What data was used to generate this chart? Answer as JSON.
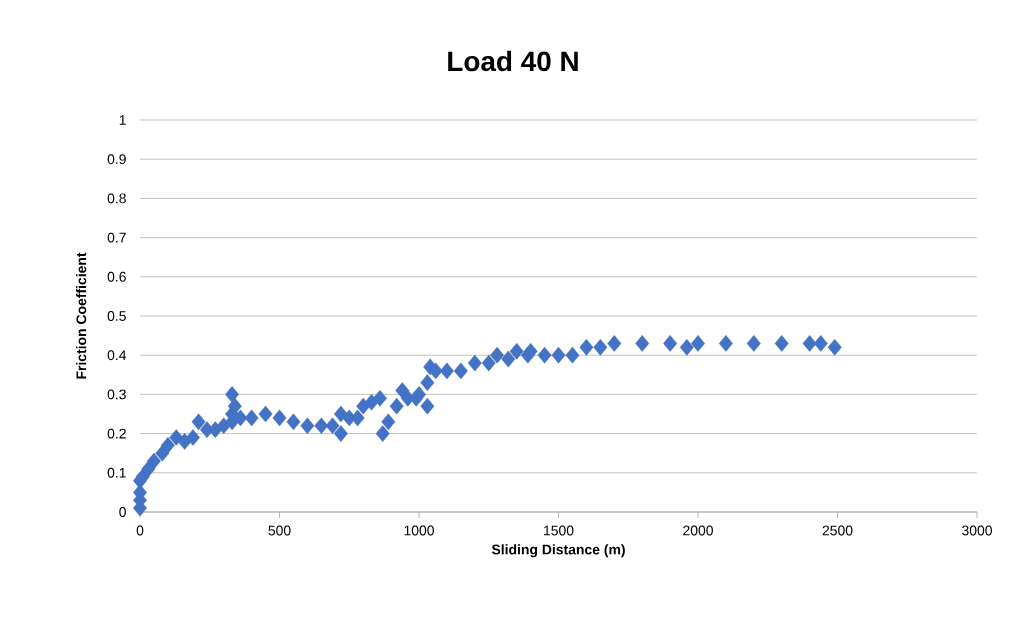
{
  "chart_data": {
    "type": "scatter",
    "title": "Load 40 N",
    "xlabel": "Sliding Distance (m)",
    "ylabel": "Friction Coefficient",
    "x": [
      0,
      0,
      0,
      0,
      10,
      30,
      50,
      80,
      100,
      130,
      160,
      190,
      210,
      240,
      270,
      300,
      330,
      330,
      330,
      340,
      360,
      400,
      450,
      500,
      550,
      600,
      650,
      690,
      720,
      720,
      750,
      780,
      800,
      830,
      860,
      870,
      890,
      920,
      940,
      960,
      990,
      1000,
      1030,
      1030,
      1040,
      1060,
      1100,
      1150,
      1200,
      1250,
      1280,
      1320,
      1350,
      1390,
      1400,
      1450,
      1500,
      1550,
      1600,
      1650,
      1700,
      1800,
      1900,
      1960,
      2000,
      2100,
      2200,
      2300,
      2400,
      2440,
      2490
    ],
    "series": [
      {
        "color": "#4472c4",
        "values": [
          0.01,
          0.03,
          0.05,
          0.08,
          0.09,
          0.11,
          0.13,
          0.15,
          0.17,
          0.19,
          0.18,
          0.19,
          0.23,
          0.21,
          0.21,
          0.22,
          0.23,
          0.25,
          0.3,
          0.27,
          0.24,
          0.24,
          0.25,
          0.24,
          0.23,
          0.22,
          0.22,
          0.22,
          0.25,
          0.2,
          0.24,
          0.24,
          0.27,
          0.28,
          0.29,
          0.2,
          0.23,
          0.27,
          0.31,
          0.29,
          0.29,
          0.3,
          0.27,
          0.33,
          0.37,
          0.36,
          0.36,
          0.36,
          0.38,
          0.38,
          0.4,
          0.39,
          0.41,
          0.4,
          0.41,
          0.4,
          0.4,
          0.4,
          0.42,
          0.42,
          0.43,
          0.43,
          0.43,
          0.42,
          0.43,
          0.43,
          0.43,
          0.43,
          0.43,
          0.43,
          0.42
        ]
      }
    ],
    "xlim": [
      0,
      3000
    ],
    "xticks": [
      0,
      500,
      1000,
      1500,
      2000,
      2500,
      3000
    ],
    "ylim": [
      0,
      1
    ],
    "yticks": [
      0,
      0.1,
      0.2,
      0.3,
      0.4,
      0.5,
      0.6,
      0.7,
      0.8,
      0.9,
      1
    ],
    "grid": "y",
    "marker": "diamond"
  }
}
